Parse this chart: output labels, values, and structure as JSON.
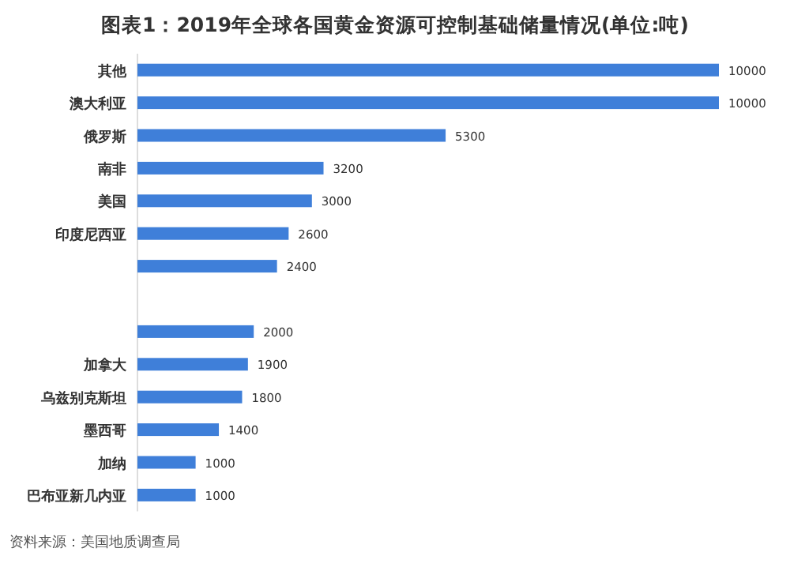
{
  "chart_data": {
    "type": "bar",
    "orientation": "horizontal",
    "title": "图表1：2019年全球各国黄金资源可控制基础储量情况(单位:吨)",
    "categories": [
      "其他",
      "澳大利亚",
      "俄罗斯",
      "南非",
      "美国",
      "印度尼西亚",
      null,
      null,
      null,
      "加拿大",
      "乌兹别克斯坦",
      "墨西哥",
      "加纳",
      "巴布亚新几内亚"
    ],
    "values": [
      10000,
      10000,
      5300,
      3200,
      3000,
      2600,
      2400,
      null,
      2000,
      1900,
      1800,
      1400,
      1000,
      1000
    ],
    "color": "#3f7fd9",
    "data_labels": true,
    "annotations": [
      "资料来源：美国地质调查局"
    ]
  }
}
